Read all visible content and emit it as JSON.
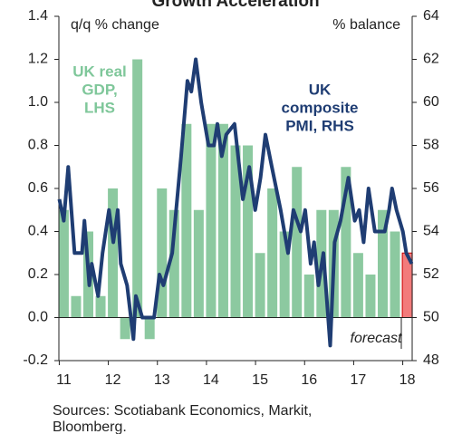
{
  "chart_data": {
    "type": "bar+line",
    "title": "Growth Acceleration",
    "y_label": "q/q % change",
    "y2_label": "% balance",
    "source": [
      "Sources: Scotiabank Economics, Markit,",
      "Bloomberg."
    ],
    "annotations": [
      {
        "lines": [
          "UK real",
          "GDP,",
          "LHS"
        ],
        "color": "#7fc79a"
      },
      {
        "lines": [
          "UK",
          "composite",
          "PMI, RHS"
        ],
        "color": "#1f3d73"
      },
      {
        "lines": [
          "forecast"
        ],
        "color": "#222"
      }
    ],
    "xlim": [
      2010.9,
      2018.1
    ],
    "xticks": [
      {
        "value": 2011,
        "label": "11"
      },
      {
        "value": 2012,
        "label": "12"
      },
      {
        "value": 2013,
        "label": "13"
      },
      {
        "value": 2014,
        "label": "14"
      },
      {
        "value": 2015,
        "label": "15"
      },
      {
        "value": 2016,
        "label": "16"
      },
      {
        "value": 2017,
        "label": "17"
      },
      {
        "value": 2018,
        "label": "18"
      }
    ],
    "ylim": [
      -0.2,
      1.4
    ],
    "yticks": [
      -0.2,
      {
        "value": 0,
        "label": "0.0"
      },
      0.2,
      0.4,
      0.6,
      0.8,
      {
        "value": 1,
        "label": "1.0"
      },
      1.2,
      1.4
    ],
    "y2lim": [
      48,
      64
    ],
    "y2ticks": [
      48,
      50,
      52,
      54,
      56,
      58,
      60,
      62,
      64
    ],
    "series": [
      {
        "name": "UK real GDP, LHS",
        "kind": "bar",
        "x": [
          2011,
          2011.25,
          2011.5,
          2011.75,
          2012,
          2012.25,
          2012.5,
          2012.75,
          2013,
          2013.25,
          2013.5,
          2013.75,
          2014,
          2014.25,
          2014.5,
          2014.75,
          2015,
          2015.25,
          2015.5,
          2015.75,
          2016,
          2016.25,
          2016.5,
          2016.75,
          2017,
          2017.25,
          2017.5,
          2017.75,
          2018
        ],
        "values": [
          0.5,
          0.1,
          0.4,
          0.1,
          0.6,
          -0.1,
          1.2,
          -0.1,
          0.6,
          0.5,
          0.9,
          0.5,
          0.9,
          0.9,
          0.8,
          0.8,
          0.3,
          0.6,
          0.4,
          0.7,
          0.2,
          0.5,
          0.5,
          0.7,
          0.3,
          0.2,
          0.5,
          0.4,
          0.3
        ],
        "colors": [
          "#8cc9a0",
          "#8cc9a0",
          "#8cc9a0",
          "#8cc9a0",
          "#8cc9a0",
          "#8cc9a0",
          "#8cc9a0",
          "#8cc9a0",
          "#8cc9a0",
          "#8cc9a0",
          "#8cc9a0",
          "#8cc9a0",
          "#8cc9a0",
          "#8cc9a0",
          "#8cc9a0",
          "#8cc9a0",
          "#8cc9a0",
          "#8cc9a0",
          "#8cc9a0",
          "#8cc9a0",
          "#8cc9a0",
          "#8cc9a0",
          "#8cc9a0",
          "#8cc9a0",
          "#8cc9a0",
          "#8cc9a0",
          "#8cc9a0",
          "#8cc9a0",
          "#f27b7b"
        ]
      },
      {
        "name": "UK composite PMI, RHS",
        "kind": "line",
        "axis": "y2",
        "color": "#1f3d73",
        "x": [
          2010.91,
          2011.0,
          2011.09,
          2011.22,
          2011.37,
          2011.42,
          2011.52,
          2011.57,
          2011.7,
          2011.79,
          2011.92,
          2012.01,
          2012.1,
          2012.16,
          2012.29,
          2012.42,
          2012.47,
          2012.6,
          2012.84,
          2012.95,
          2013.03,
          2013.21,
          2013.39,
          2013.52,
          2013.6,
          2013.69,
          2013.8,
          2013.95,
          2014.06,
          2014.13,
          2014.22,
          2014.31,
          2014.48,
          2014.65,
          2014.78,
          2014.9,
          2015.01,
          2015.11,
          2015.24,
          2015.42,
          2015.57,
          2015.68,
          2015.83,
          2015.92,
          2016.03,
          2016.1,
          2016.19,
          2016.29,
          2016.43,
          2016.52,
          2016.64,
          2016.8,
          2016.93,
          2017.02,
          2017.11,
          2017.21,
          2017.34,
          2017.45,
          2017.54,
          2017.63,
          2017.69,
          2017.78,
          2017.91,
          2017.98,
          2018.09
        ],
        "values": [
          55.5,
          54.5,
          57,
          53,
          53,
          54.5,
          51.5,
          52.5,
          51,
          53,
          55,
          53.5,
          55,
          52.5,
          51.5,
          49,
          51,
          50,
          50,
          52,
          51.5,
          53,
          57.5,
          61,
          60.5,
          62,
          60,
          58,
          58,
          59,
          57.5,
          58.5,
          59,
          55.5,
          57,
          55,
          56.5,
          58.5,
          57,
          55,
          53,
          55,
          54,
          55,
          52.5,
          53.5,
          51.5,
          53,
          48.7,
          53.5,
          54.5,
          56.5,
          54.5,
          55,
          53.5,
          56,
          54,
          54,
          54,
          55,
          56,
          55,
          54,
          53,
          52.5
        ]
      }
    ]
  }
}
